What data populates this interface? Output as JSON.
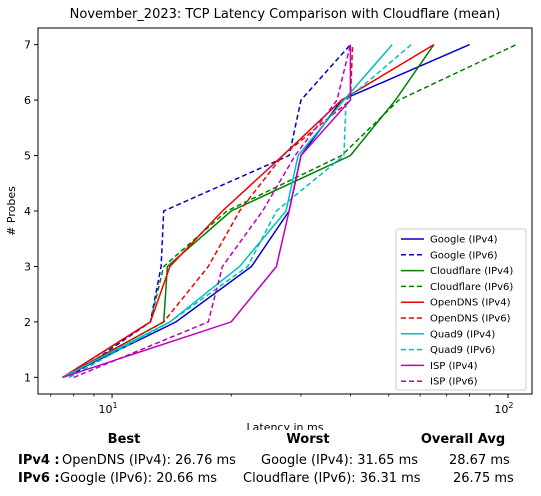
{
  "chart_data": {
    "type": "line",
    "title": "November_2023: TCP Latency Comparison with Cloudflare (mean)",
    "xlabel": "Latency in ms",
    "ylabel": "# Probes",
    "xscale": "log",
    "xlim": [
      6.5,
      115
    ],
    "ylim": [
      0.7,
      7.3
    ],
    "xticks": [
      {
        "value": 10,
        "label": "10^1"
      },
      {
        "value": 100,
        "label": "10^2"
      }
    ],
    "yticks": [
      1,
      2,
      3,
      4,
      5,
      6,
      7
    ],
    "grid": false,
    "legend_position": "lower right",
    "series": [
      {
        "name": "Google (IPv4)",
        "color": "#0000cc",
        "dash": "solid",
        "x": [
          7.5,
          14.5,
          22.5,
          28.0,
          30.0,
          38.0,
          80.0
        ],
        "y": [
          1,
          2,
          3,
          4,
          5,
          6,
          7
        ]
      },
      {
        "name": "Google (IPv6)",
        "color": "#0000cc",
        "dash": "dashed",
        "x": [
          7.8,
          12.5,
          13.3,
          13.5,
          28.0,
          30.0,
          40.0
        ],
        "y": [
          1,
          2,
          3,
          4,
          5,
          6,
          7
        ]
      },
      {
        "name": "Cloudflare (IPv4)",
        "color": "#008000",
        "dash": "solid",
        "x": [
          7.5,
          13.5,
          13.8,
          20.0,
          40.0,
          52.0,
          65.0
        ],
        "y": [
          1,
          2,
          3,
          4,
          5,
          6,
          7
        ]
      },
      {
        "name": "Cloudflare (IPv6)",
        "color": "#008000",
        "dash": "dashed",
        "x": [
          7.5,
          12.5,
          13.5,
          19.5,
          38.0,
          53.0,
          105.0
        ],
        "y": [
          1,
          2,
          3,
          4,
          5,
          6,
          7
        ]
      },
      {
        "name": "OpenDNS (IPv4)",
        "color": "#ee0000",
        "dash": "solid",
        "x": [
          7.5,
          12.5,
          14.0,
          19.0,
          27.0,
          38.0,
          65.0
        ],
        "y": [
          1,
          2,
          3,
          4,
          5,
          6,
          7
        ]
      },
      {
        "name": "OpenDNS (IPv6)",
        "color": "#ee0000",
        "dash": "dashed",
        "x": [
          7.5,
          13.5,
          17.5,
          21.0,
          27.0,
          40.0,
          40.5
        ],
        "y": [
          1,
          2,
          3,
          4,
          5,
          6,
          7
        ]
      },
      {
        "name": "Quad9 (IPv4)",
        "color": "#00bfbf",
        "dash": "solid",
        "x": [
          7.5,
          14.0,
          21.0,
          27.5,
          29.5,
          38.5,
          51.0
        ],
        "y": [
          1,
          2,
          3,
          4,
          5,
          6,
          7
        ]
      },
      {
        "name": "Quad9 (IPv6)",
        "color": "#00bfbf",
        "dash": "dashed",
        "x": [
          7.8,
          14.0,
          22.0,
          26.0,
          38.5,
          39.0,
          57.0
        ],
        "y": [
          1,
          2,
          3,
          4,
          5,
          6,
          7
        ]
      },
      {
        "name": "ISP (IPv4)",
        "color": "#bf00bf",
        "dash": "solid",
        "x": [
          7.5,
          20.0,
          26.0,
          28.0,
          30.0,
          40.0,
          40.0
        ],
        "y": [
          1,
          2,
          3,
          4,
          5,
          6,
          7
        ]
      },
      {
        "name": "ISP (IPv6)",
        "color": "#bf00bf",
        "dash": "dashed",
        "x": [
          8.0,
          17.5,
          19.0,
          24.0,
          29.0,
          37.0,
          40.0
        ],
        "y": [
          1,
          2,
          3,
          4,
          5,
          6,
          7
        ]
      }
    ]
  },
  "summary": {
    "headers": {
      "best": "Best",
      "worst": "Worst",
      "avg": "Overall Avg"
    },
    "rows": [
      {
        "label": "IPv4 :",
        "best": "OpenDNS (IPv4): 26.76 ms",
        "worst": "Google (IPv4): 31.65 ms",
        "avg": "28.67 ms"
      },
      {
        "label": "IPv6 :",
        "best": "Google (IPv6): 20.66 ms",
        "worst": "Cloudflare (IPv6): 36.31 ms",
        "avg": "26.75 ms"
      }
    ]
  }
}
